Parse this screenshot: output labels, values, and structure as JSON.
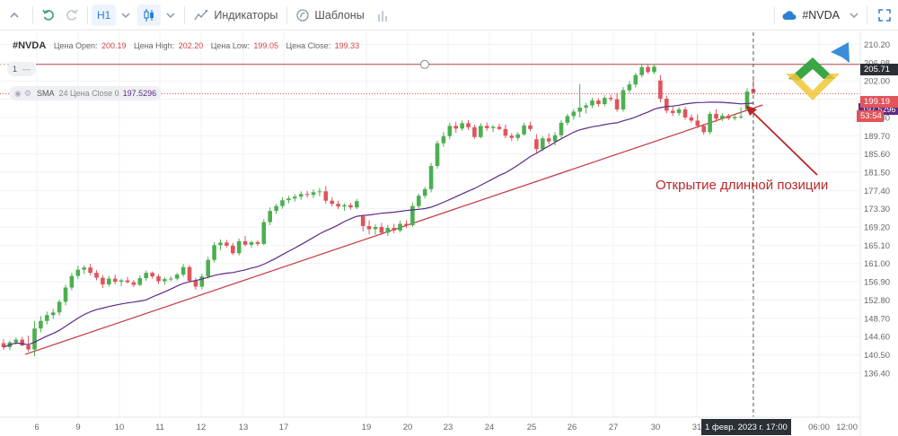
{
  "toolbar": {
    "timeframe": "H1",
    "indicators_label": "Индикаторы",
    "templates_label": "Шаблоны",
    "symbol_selector": "#NVDA"
  },
  "legend": {
    "symbol": "#NVDA",
    "open_label": "Цена Open:",
    "open_value": "200.19",
    "high_label": "Цена High:",
    "high_value": "202.20",
    "low_label": "Цена Low:",
    "low_value": "199.05",
    "close_label": "Цена Close:",
    "close_value": "199.33"
  },
  "hline_pill": {
    "label": "1",
    "suffix": "—"
  },
  "sma_pill": {
    "name": "SMA",
    "params": "24 Цена Close 0",
    "value": "197.5296"
  },
  "price_axis": {
    "ticks": [
      "210.20",
      "206.08",
      "202.00",
      "197.86",
      "193.80",
      "189.70",
      "185.60",
      "181.50",
      "177.40",
      "173.30",
      "169.20",
      "165.10",
      "161.00",
      "156.90",
      "152.80",
      "148.70",
      "144.60",
      "140.50",
      "136.40"
    ],
    "hline_tag": "205.71",
    "price_tag": "199.19",
    "sma_tag": "197.5296",
    "countdown_tag": "53:54"
  },
  "time_axis": {
    "ticks": [
      "6",
      "9",
      "10",
      "11",
      "12",
      "13",
      "17",
      "19",
      "20",
      "23",
      "24",
      "25",
      "26",
      "27",
      "30",
      "31",
      "06:00",
      "12:00"
    ],
    "cursor_label": "1 февр. 2023 г. 17:00"
  },
  "annotation": "Открытие длинной позиции",
  "colors": {
    "up": "#4caf50",
    "down": "#e0545a",
    "sma": "#5b2a86",
    "trend": "#c8353c",
    "hline": "#b54848"
  },
  "chart_data": {
    "type": "candlestick",
    "symbol": "#NVDA",
    "timeframe": "H1",
    "ylim": [
      136.4,
      212
    ],
    "hline": 205.71,
    "candles_ohlc": [
      [
        143.1,
        144.0,
        141.6,
        142.2
      ],
      [
        142.2,
        143.7,
        141.5,
        143.3
      ],
      [
        143.3,
        144.4,
        142.8,
        143.9
      ],
      [
        143.9,
        144.5,
        142.4,
        142.6
      ],
      [
        142.6,
        144.8,
        141.2,
        141.7
      ],
      [
        141.7,
        148.1,
        140.2,
        146.4
      ],
      [
        146.4,
        149.2,
        145.5,
        148.1
      ],
      [
        148.1,
        150.2,
        147.3,
        149.4
      ],
      [
        149.4,
        150.8,
        148.5,
        150.0
      ],
      [
        150.0,
        152.9,
        149.3,
        152.4
      ],
      [
        152.4,
        156.2,
        151.6,
        155.6
      ],
      [
        155.6,
        158.9,
        155.0,
        158.2
      ],
      [
        158.2,
        160.5,
        157.5,
        159.6
      ],
      [
        159.6,
        160.6,
        158.6,
        160.1
      ],
      [
        160.1,
        160.9,
        158.4,
        158.9
      ],
      [
        158.9,
        159.5,
        157.2,
        157.8
      ],
      [
        157.8,
        158.4,
        155.5,
        156.3
      ],
      [
        156.3,
        158.2,
        155.8,
        157.6
      ],
      [
        157.6,
        158.5,
        156.3,
        156.9
      ],
      [
        156.9,
        157.6,
        155.9,
        157.2
      ],
      [
        157.2,
        158.0,
        156.5,
        156.8
      ],
      [
        156.8,
        157.3,
        155.7,
        156.2
      ],
      [
        156.2,
        158.3,
        155.9,
        157.7
      ],
      [
        157.7,
        159.4,
        157.1,
        158.9
      ],
      [
        158.9,
        159.2,
        157.6,
        158.1
      ],
      [
        158.1,
        158.6,
        156.4,
        157.0
      ],
      [
        157.0,
        157.9,
        156.2,
        157.5
      ],
      [
        157.5,
        158.1,
        157.0,
        157.6
      ],
      [
        157.6,
        158.9,
        157.2,
        158.5
      ],
      [
        158.5,
        160.9,
        158.0,
        160.2
      ],
      [
        160.2,
        160.6,
        156.8,
        157.1
      ],
      [
        157.1,
        157.8,
        155.1,
        155.8
      ],
      [
        155.8,
        158.7,
        155.2,
        158.1
      ],
      [
        158.1,
        162.5,
        157.6,
        161.8
      ],
      [
        161.8,
        165.8,
        161.2,
        165.1
      ],
      [
        165.1,
        166.4,
        164.0,
        165.7
      ],
      [
        165.7,
        166.3,
        164.6,
        165.0
      ],
      [
        165.0,
        165.6,
        162.9,
        163.3
      ],
      [
        163.3,
        166.6,
        162.8,
        166.0
      ],
      [
        166.0,
        167.2,
        164.8,
        165.2
      ],
      [
        165.2,
        166.1,
        164.5,
        165.8
      ],
      [
        165.8,
        166.2,
        164.9,
        165.4
      ],
      [
        165.4,
        171.0,
        165.1,
        170.3
      ],
      [
        170.3,
        173.6,
        169.6,
        172.8
      ],
      [
        172.8,
        174.4,
        172.1,
        173.9
      ],
      [
        173.9,
        175.9,
        173.3,
        175.2
      ],
      [
        175.2,
        176.2,
        174.5,
        175.6
      ],
      [
        175.6,
        176.6,
        174.9,
        176.0
      ],
      [
        176.0,
        177.2,
        175.3,
        176.6
      ],
      [
        176.6,
        177.3,
        175.8,
        176.4
      ],
      [
        176.4,
        177.6,
        175.7,
        177.0
      ],
      [
        177.0,
        178.0,
        176.1,
        177.2
      ],
      [
        177.2,
        178.4,
        174.5,
        175.1
      ],
      [
        175.1,
        175.8,
        173.8,
        174.4
      ],
      [
        174.4,
        175.1,
        173.2,
        173.8
      ],
      [
        173.8,
        174.5,
        172.8,
        174.1
      ],
      [
        174.1,
        174.6,
        173.1,
        173.6
      ],
      [
        173.6,
        175.5,
        173.2,
        175.0
      ],
      [
        171.6,
        172.0,
        168.2,
        169.4
      ],
      [
        169.4,
        170.7,
        167.6,
        168.7
      ],
      [
        168.7,
        169.8,
        167.5,
        169.2
      ],
      [
        169.2,
        170.1,
        167.4,
        167.9
      ],
      [
        167.9,
        169.6,
        167.2,
        169.0
      ],
      [
        169.0,
        169.9,
        167.8,
        168.4
      ],
      [
        168.4,
        170.6,
        168.0,
        169.9
      ],
      [
        169.9,
        170.7,
        169.0,
        169.6
      ],
      [
        169.6,
        174.7,
        169.2,
        173.9
      ],
      [
        173.9,
        176.7,
        173.4,
        176.2
      ],
      [
        176.2,
        178.2,
        175.6,
        177.7
      ],
      [
        177.7,
        183.6,
        177.0,
        182.9
      ],
      [
        182.9,
        188.6,
        182.3,
        188.0
      ],
      [
        188.0,
        190.5,
        187.2,
        189.6
      ],
      [
        189.6,
        192.6,
        188.9,
        191.9
      ],
      [
        191.9,
        192.8,
        190.4,
        191.3
      ],
      [
        191.3,
        193.1,
        190.8,
        192.5
      ],
      [
        192.5,
        193.2,
        191.0,
        191.6
      ],
      [
        191.6,
        192.2,
        189.0,
        189.4
      ],
      [
        189.4,
        192.5,
        189.1,
        191.9
      ],
      [
        191.9,
        192.7,
        190.8,
        191.4
      ],
      [
        191.4,
        192.1,
        190.5,
        191.7
      ],
      [
        191.7,
        192.4,
        190.9,
        191.2
      ],
      [
        191.2,
        192.2,
        189.1,
        189.7
      ],
      [
        189.7,
        190.3,
        188.5,
        189.2
      ],
      [
        189.2,
        190.5,
        188.6,
        190.0
      ],
      [
        190.0,
        192.6,
        189.7,
        192.0
      ],
      [
        192.0,
        192.8,
        190.7,
        191.2
      ],
      [
        188.9,
        190.0,
        185.9,
        186.7
      ],
      [
        186.7,
        189.6,
        186.2,
        189.1
      ],
      [
        189.1,
        190.2,
        187.8,
        188.4
      ],
      [
        188.4,
        190.5,
        187.5,
        189.8
      ],
      [
        189.8,
        193.2,
        189.2,
        192.6
      ],
      [
        192.6,
        194.6,
        192.0,
        194.1
      ],
      [
        194.1,
        195.7,
        193.3,
        195.1
      ],
      [
        195.1,
        201.3,
        193.8,
        196.0
      ],
      [
        196.0,
        197.1,
        194.7,
        196.5
      ],
      [
        196.5,
        198.2,
        195.9,
        197.6
      ],
      [
        197.6,
        198.1,
        196.2,
        196.8
      ],
      [
        196.8,
        198.8,
        196.3,
        198.2
      ],
      [
        198.2,
        198.9,
        197.4,
        197.9
      ],
      [
        197.9,
        199.3,
        195.1,
        195.6
      ],
      [
        195.6,
        200.6,
        195.1,
        199.9
      ],
      [
        199.9,
        201.9,
        199.3,
        201.2
      ],
      [
        201.2,
        203.8,
        200.5,
        203.3
      ],
      [
        203.3,
        205.8,
        202.8,
        205.1
      ],
      [
        205.1,
        205.8,
        203.6,
        204.0
      ],
      [
        204.0,
        205.7,
        203.5,
        205.2
      ],
      [
        202.1,
        203.3,
        197.2,
        198.0
      ],
      [
        198.0,
        198.7,
        194.7,
        195.3
      ],
      [
        195.3,
        196.4,
        194.1,
        194.8
      ],
      [
        194.8,
        196.1,
        194.2,
        195.6
      ],
      [
        195.6,
        196.2,
        193.3,
        193.8
      ],
      [
        193.8,
        194.5,
        192.6,
        193.1
      ],
      [
        193.1,
        194.5,
        191.4,
        191.9
      ],
      [
        191.9,
        192.4,
        189.9,
        190.5
      ],
      [
        190.5,
        195.1,
        190.0,
        194.6
      ],
      [
        194.6,
        195.6,
        192.8,
        193.5
      ],
      [
        193.5,
        194.8,
        193.0,
        194.2
      ],
      [
        194.2,
        194.6,
        193.2,
        193.6
      ],
      [
        193.6,
        194.4,
        193.1,
        193.9
      ],
      [
        193.9,
        196.1,
        193.5,
        194.0
      ],
      [
        195.6,
        200.3,
        195.2,
        199.6
      ],
      [
        200.19,
        202.2,
        199.05,
        199.33
      ]
    ],
    "sma_period": 24,
    "sma_last": 197.5296,
    "trendline": {
      "from": [
        3.5,
        140.6
      ],
      "to": [
        122.5,
        196.6
      ]
    }
  }
}
